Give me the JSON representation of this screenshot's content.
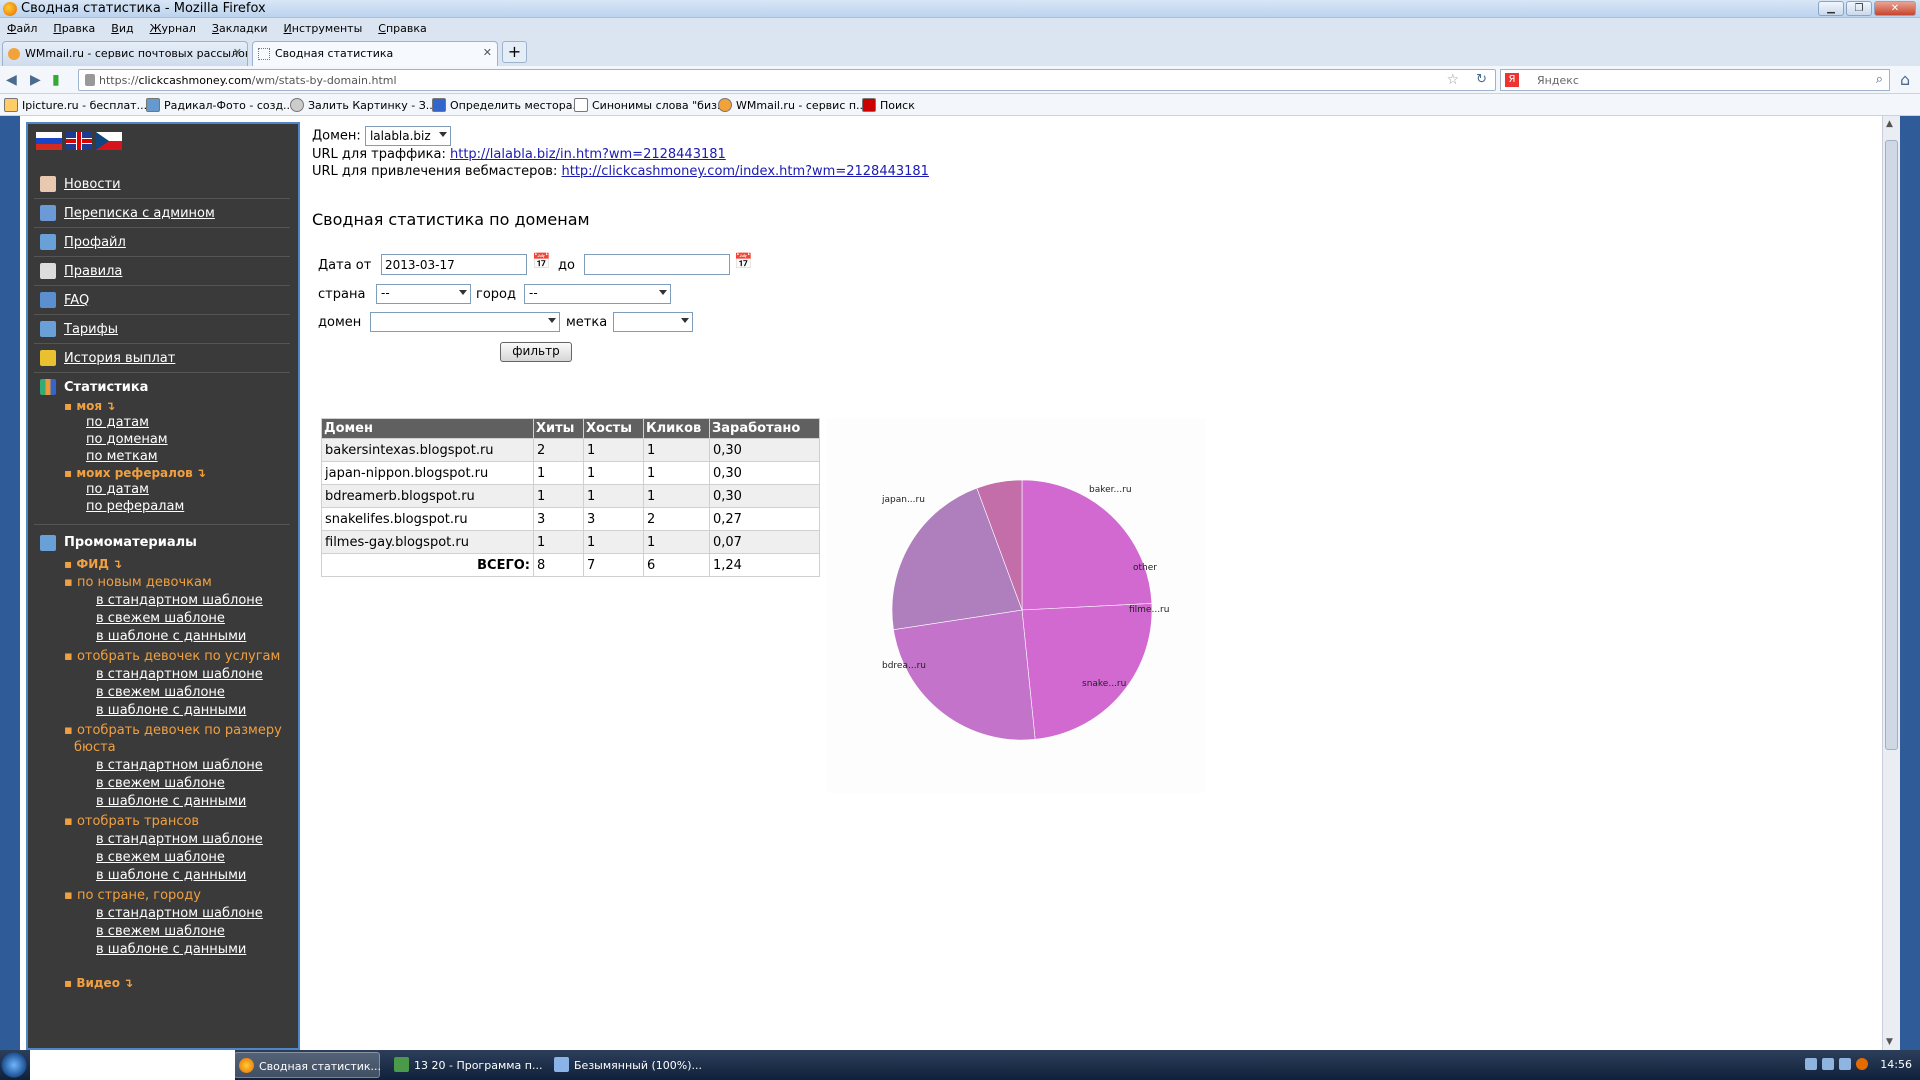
{
  "window": {
    "title": "Сводная статистика - Mozilla Firefox"
  },
  "menu": [
    "Файл",
    "Правка",
    "Вид",
    "Журнал",
    "Закладки",
    "Инструменты",
    "Справка"
  ],
  "tabs": [
    {
      "label": "WMmail.ru - сервис почтовых рассылок...",
      "active": false
    },
    {
      "label": "Сводная статистика",
      "active": true
    }
  ],
  "url": {
    "prefix": "https://",
    "domain": "clickcashmoney.com",
    "path": "/wm/stats-by-domain.html"
  },
  "search": {
    "placeholder": "Яндекс"
  },
  "bookmarks": [
    "Ipicture.ru - бесплат...",
    "Радикал-Фото - созд...",
    "Залить Картинку - З...",
    "Определить местора...",
    "Синонимы слова \"биз...",
    "WMmail.ru - сервис п...",
    "Поиск"
  ],
  "sidebar": {
    "nav": [
      "Новости",
      "Переписка с админом",
      "Профайл",
      "Правила",
      "FAQ",
      "Тарифы",
      "История выплат"
    ],
    "stats_title": "Статистика",
    "my": "моя",
    "my_links": [
      "по датам",
      "по доменам",
      "по меткам"
    ],
    "refs": "моих рефералов",
    "refs_links": [
      "по датам",
      "по рефералам"
    ],
    "promo_title": "Промоматериалы",
    "fid": "ФИД",
    "groups": [
      {
        "title": "по новым девочкам",
        "links": [
          "в стандартном шаблоне",
          "в свежем шаблоне",
          "в шаблоне с данными"
        ]
      },
      {
        "title": "отобрать девочек по услугам",
        "links": [
          "в стандартном шаблоне",
          "в свежем шаблоне",
          "в шаблоне с данными"
        ]
      },
      {
        "title": "отобрать девочек по размеру бюста",
        "links": [
          "в стандартном шаблоне",
          "в свежем шаблоне",
          "в шаблоне с данными"
        ]
      },
      {
        "title": "отобрать трансов",
        "links": [
          "в стандартном шаблоне",
          "в свежем шаблоне",
          "в шаблоне с данными"
        ]
      },
      {
        "title": "по стране, городу",
        "links": [
          "в стандартном шаблоне",
          "в свежем шаблоне",
          "в шаблоне с данными"
        ]
      }
    ],
    "video": "Видео"
  },
  "main": {
    "domain_label": "Домен:",
    "domain_value": "lalabla.biz",
    "traffic_label": "URL для траффика:",
    "traffic_url": "http://lalabla.biz/in.htm?wm=2128443181",
    "webmaster_label": "URL для привлечения вебмастеров:",
    "webmaster_url": "http://clickcashmoney.com/index.htm?wm=2128443181",
    "heading": "Сводная статистика по доменам",
    "date_from_label": "Дата от",
    "date_from": "2013-03-17",
    "date_to_label": "до",
    "date_to": "",
    "country_label": "страна",
    "country_value": "--",
    "city_label": "город",
    "city_value": "--",
    "domain2_label": "домен",
    "mark_label": "метка",
    "filter_button": "фильтр"
  },
  "table": {
    "headers": [
      "Домен",
      "Хиты",
      "Хосты",
      "Кликов",
      "Заработано"
    ],
    "rows": [
      [
        "bakersintexas.blogspot.ru",
        "2",
        "1",
        "1",
        "0,30"
      ],
      [
        "japan-nippon.blogspot.ru",
        "1",
        "1",
        "1",
        "0,30"
      ],
      [
        "bdreamerb.blogspot.ru",
        "1",
        "1",
        "1",
        "0,30"
      ],
      [
        "snakelifes.blogspot.ru",
        "3",
        "3",
        "2",
        "0,27"
      ],
      [
        "filmes-gay.blogspot.ru",
        "1",
        "1",
        "1",
        "0,07"
      ]
    ],
    "total_label": "ВСЕГО:",
    "totals": [
      "8",
      "7",
      "6",
      "1,24"
    ]
  },
  "chart_data": {
    "type": "pie",
    "labels": [
      "baker...ru",
      "japan...ru",
      "bdrea...ru",
      "snake...ru",
      "filme...ru",
      "other"
    ],
    "values": [
      0.3,
      0.3,
      0.3,
      0.27,
      0.07,
      0.0
    ],
    "colors": [
      "#c94fc9",
      "#c94fc9",
      "#b85bc0",
      "#a069b0",
      "#b9549a",
      "#d9264a"
    ]
  },
  "taskbar": {
    "items": [
      "Сводная статистик...",
      "13 20 - Программа п...",
      "Безымянный (100%)..."
    ],
    "clock": "14:56"
  }
}
